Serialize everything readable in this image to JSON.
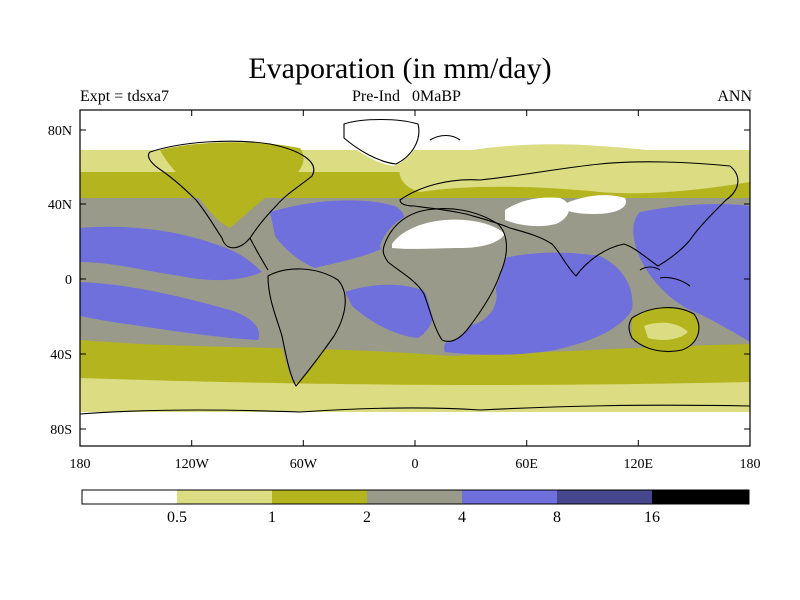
{
  "title": "Evaporation (in mm/day)",
  "experiment": "Expt = tdsxa7",
  "period": "Pre-Ind",
  "age": "0MaBP",
  "season": "ANN",
  "axes": {
    "lat_ticks": [
      "80N",
      "40N",
      "0",
      "40S",
      "80S"
    ],
    "lon_ticks": [
      "180",
      "120W",
      "60W",
      "0",
      "60E",
      "120E",
      "180"
    ]
  },
  "legend": {
    "labels": [
      "0.5",
      "1",
      "2",
      "4",
      "8",
      "16"
    ],
    "colors": [
      "#ffffff",
      "#dcdc82",
      "#b4b41e",
      "#9a9a8a",
      "#7070dc",
      "#46468c",
      "#000000"
    ]
  }
}
